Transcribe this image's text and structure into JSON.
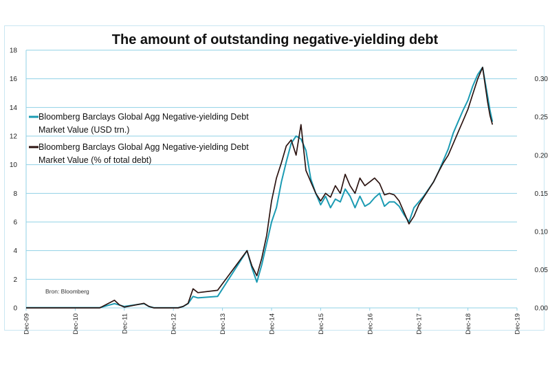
{
  "chart_data": {
    "type": "line",
    "title": "The amount of outstanding negative-yielding debt",
    "source": "Bron: Bloomberg",
    "x_ticks": [
      "Dec-09",
      "Dec-10",
      "Dec-11",
      "Dec-12",
      "Dec-13",
      "Dec-14",
      "Dec-15",
      "Dec-16",
      "Dec-17",
      "Dec-18",
      "Dec-19"
    ],
    "x_range": [
      "Dec-09",
      "Jun-19"
    ],
    "y_left": {
      "ticks": [
        "0",
        "2",
        "4",
        "6",
        "8",
        "10",
        "12",
        "14",
        "16",
        "18"
      ],
      "ylim": [
        0,
        18
      ]
    },
    "y_right": {
      "ticks": [
        "0.00",
        "0.05",
        "0.10",
        "0.15",
        "0.20",
        "0.25",
        "0.30"
      ],
      "ylim": [
        0,
        0.3375
      ]
    },
    "grid": "horizontal",
    "legend_position": "upper-left",
    "series": [
      {
        "name": "Bloomberg Barclays Global Agg Negative-yielding Debt Market Value (USD trn.)",
        "color": "#1b9bb3",
        "axis": "left",
        "x": [
          0.0,
          1.5,
          1.8,
          1.9,
          2.0,
          2.4,
          2.5,
          2.6,
          2.7,
          2.8,
          3.0,
          3.1,
          3.2,
          3.3,
          3.4,
          3.5,
          3.9,
          4.5,
          4.6,
          4.7,
          4.8,
          4.9,
          5.0,
          5.1,
          5.2,
          5.3,
          5.4,
          5.5,
          5.6,
          5.7,
          5.8,
          5.9,
          6.0,
          6.1,
          6.2,
          6.3,
          6.4,
          6.5,
          6.6,
          6.7,
          6.8,
          6.9,
          7.0,
          7.1,
          7.2,
          7.3,
          7.4,
          7.5,
          7.6,
          7.7,
          7.8,
          7.9,
          8.0,
          8.1,
          8.2,
          8.3,
          8.4,
          8.5,
          8.6,
          8.7,
          8.8,
          8.9,
          9.0,
          9.1,
          9.2,
          9.3,
          9.4,
          9.45,
          9.5
        ],
        "values": [
          0.02,
          0.02,
          0.3,
          0.2,
          0.1,
          0.3,
          0.1,
          0.02,
          0.01,
          0.01,
          0.01,
          0.02,
          0.1,
          0.3,
          0.8,
          0.7,
          0.8,
          4.0,
          2.8,
          1.8,
          3.0,
          4.5,
          6.0,
          7.0,
          8.8,
          10.2,
          11.5,
          12.0,
          11.8,
          11.0,
          9.0,
          8.0,
          7.2,
          7.8,
          7.0,
          7.6,
          7.4,
          8.3,
          7.8,
          7.0,
          7.8,
          7.1,
          7.3,
          7.7,
          8.0,
          7.1,
          7.4,
          7.4,
          7.1,
          6.5,
          6.0,
          7.0,
          7.4,
          7.8,
          8.3,
          8.8,
          9.5,
          10.3,
          11.1,
          12.2,
          13.0,
          13.8,
          14.5,
          15.5,
          16.3,
          16.8,
          14.8,
          13.8,
          13.0
        ]
      },
      {
        "name": "Bloomberg Barclays Global Agg Negative-yielding Debt Market Value (% of total debt)",
        "color": "#2b1310",
        "axis": "right",
        "x": [
          0.0,
          1.5,
          1.8,
          1.9,
          2.0,
          2.4,
          2.5,
          2.6,
          2.7,
          2.8,
          3.0,
          3.1,
          3.2,
          3.3,
          3.4,
          3.5,
          3.9,
          4.5,
          4.6,
          4.7,
          4.8,
          4.9,
          5.0,
          5.1,
          5.2,
          5.3,
          5.4,
          5.5,
          5.6,
          5.7,
          5.8,
          5.9,
          6.0,
          6.1,
          6.2,
          6.3,
          6.4,
          6.5,
          6.6,
          6.7,
          6.8,
          6.9,
          7.0,
          7.1,
          7.2,
          7.3,
          7.4,
          7.5,
          7.6,
          7.7,
          7.8,
          7.9,
          8.0,
          8.1,
          8.2,
          8.3,
          8.4,
          8.5,
          8.6,
          8.7,
          8.8,
          8.9,
          9.0,
          9.1,
          9.2,
          9.3,
          9.4,
          9.45,
          9.5
        ],
        "values": [
          0.0,
          0.0,
          0.01,
          0.004,
          0.001,
          0.006,
          0.002,
          0.0,
          0.0,
          0.0,
          0.0,
          0.0,
          0.002,
          0.006,
          0.025,
          0.02,
          0.023,
          0.075,
          0.055,
          0.042,
          0.065,
          0.095,
          0.14,
          0.17,
          0.19,
          0.212,
          0.22,
          0.2,
          0.24,
          0.18,
          0.165,
          0.15,
          0.14,
          0.15,
          0.145,
          0.16,
          0.15,
          0.175,
          0.16,
          0.15,
          0.17,
          0.16,
          0.165,
          0.17,
          0.163,
          0.148,
          0.15,
          0.148,
          0.14,
          0.125,
          0.11,
          0.12,
          0.135,
          0.145,
          0.155,
          0.165,
          0.178,
          0.19,
          0.2,
          0.215,
          0.23,
          0.245,
          0.26,
          0.28,
          0.3,
          0.315,
          0.27,
          0.252,
          0.24
        ]
      }
    ]
  }
}
